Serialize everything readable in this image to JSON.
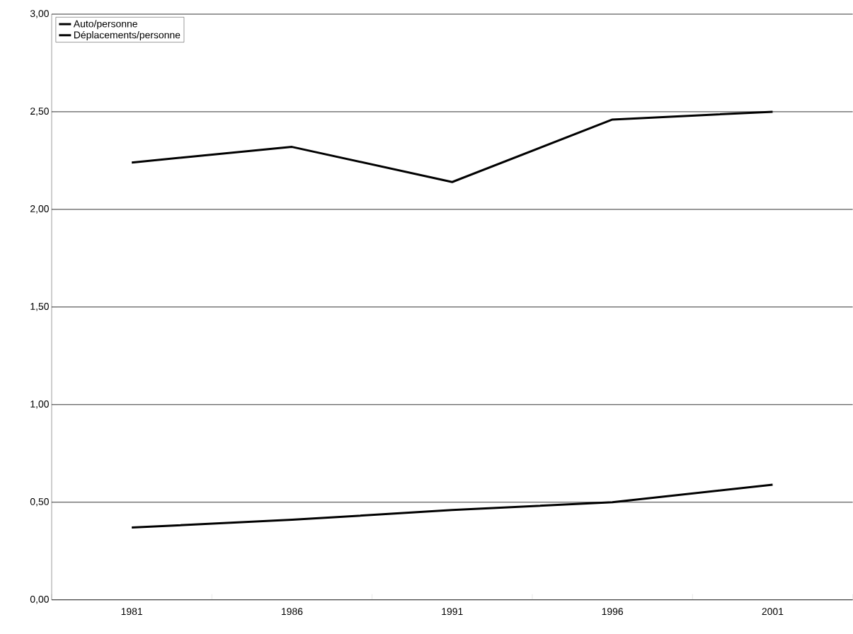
{
  "chart_data": {
    "type": "line",
    "categories": [
      "1981",
      "1986",
      "1991",
      "1996",
      "2001"
    ],
    "series": [
      {
        "name": "Auto/personne",
        "color": "#000000",
        "values": [
          0.37,
          0.41,
          0.46,
          0.5,
          0.59
        ]
      },
      {
        "name": "Déplacements/personne",
        "color": "#000000",
        "values": [
          2.24,
          2.32,
          2.14,
          2.46,
          2.5
        ]
      }
    ],
    "ylim": [
      0,
      3
    ],
    "yticks": [
      {
        "value": 0,
        "label": "0,00"
      },
      {
        "value": 0.5,
        "label": "0,50"
      },
      {
        "value": 1,
        "label": "1,00"
      },
      {
        "value": 1.5,
        "label": "1,50"
      },
      {
        "value": 2,
        "label": "2,00"
      },
      {
        "value": 2.5,
        "label": "2,50"
      },
      {
        "value": 3,
        "label": "3,00"
      }
    ],
    "grid": "y",
    "legend": "top left",
    "marker": "none",
    "line_style": "solid"
  }
}
